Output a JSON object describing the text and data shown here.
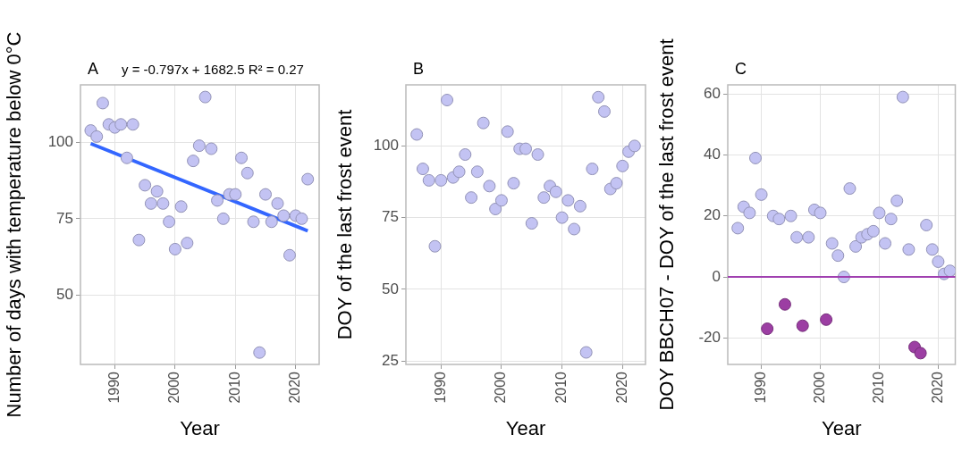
{
  "chart_data": [
    {
      "type": "scatter",
      "title": "A",
      "annotations": [
        "y = -0.797x + 1682.5 R² = 0.27"
      ],
      "xlabel": "Year",
      "ylabel": "Number of days with temperature below 0°C",
      "x": [
        1986,
        1987,
        1988,
        1989,
        1990,
        1991,
        1992,
        1993,
        1994,
        1995,
        1996,
        1997,
        1998,
        1999,
        2000,
        2001,
        2002,
        2003,
        2004,
        2005,
        2006,
        2007,
        2008,
        2009,
        2010,
        2011,
        2012,
        2013,
        2014,
        2015,
        2016,
        2017,
        2018,
        2019,
        2020,
        2021,
        2022
      ],
      "series": [
        {
          "type": "scatter",
          "color": "#c3c3f3",
          "values": [
            104,
            102,
            113,
            106,
            105,
            106,
            95,
            106,
            68,
            86,
            80,
            84,
            80,
            74,
            65,
            79,
            67,
            94,
            99,
            115,
            98,
            81,
            75,
            83,
            83,
            95,
            90,
            74,
            31,
            83,
            74,
            80,
            76,
            63,
            76,
            75,
            88
          ]
        },
        {
          "type": "line",
          "color": "#3366ff",
          "x": [
            1986,
            2022
          ],
          "values": [
            99.7,
            71.0
          ],
          "marker": "none"
        }
      ],
      "xlim": [
        1984.3,
        2023.9
      ],
      "xticks": [
        1990,
        2000,
        2010,
        2020
      ],
      "ylim": [
        27.1,
        119
      ],
      "yticks": [
        50,
        75,
        100
      ],
      "grid": true,
      "legend": false,
      "marker": "circle"
    },
    {
      "type": "scatter",
      "title": "B",
      "xlabel": "Year",
      "ylabel": "DOY of the last frost event",
      "x": [
        1986,
        1987,
        1988,
        1989,
        1990,
        1991,
        1992,
        1993,
        1994,
        1995,
        1996,
        1997,
        1998,
        1999,
        2000,
        2001,
        2002,
        2003,
        2004,
        2005,
        2006,
        2007,
        2008,
        2009,
        2010,
        2011,
        2012,
        2013,
        2014,
        2015,
        2016,
        2017,
        2018,
        2019,
        2020,
        2021,
        2022
      ],
      "series": [
        {
          "type": "scatter",
          "color": "#c3c3f3",
          "values": [
            104,
            92,
            88,
            65,
            88,
            116,
            89,
            91,
            97,
            82,
            91,
            108,
            86,
            78,
            81,
            105,
            87,
            99,
            99,
            73,
            97,
            82,
            86,
            84,
            75,
            81,
            71,
            79,
            28,
            92,
            117,
            112,
            85,
            87,
            93,
            98,
            100
          ]
        }
      ],
      "xlim": [
        1984.2,
        2023.8
      ],
      "xticks": [
        1990,
        2000,
        2010,
        2020
      ],
      "ylim": [
        23.8,
        121.3
      ],
      "yticks": [
        25,
        50,
        75,
        100
      ],
      "grid": true,
      "legend": false,
      "marker": "circle"
    },
    {
      "type": "scatter",
      "title": "C",
      "xlabel": "Year",
      "ylabel": "DOY BBCH07 - DOY of the last frost event",
      "x": [
        1986,
        1987,
        1988,
        1989,
        1990,
        1991,
        1992,
        1993,
        1994,
        1995,
        1996,
        1997,
        1998,
        1999,
        2000,
        2001,
        2002,
        2003,
        2004,
        2005,
        2006,
        2007,
        2008,
        2009,
        2010,
        2011,
        2012,
        2013,
        2014,
        2015,
        2016,
        2017,
        2018,
        2019,
        2020,
        2021,
        2022
      ],
      "series": [
        {
          "type": "scatter",
          "color": "#c3c3f3",
          "values": [
            16,
            23,
            21,
            39,
            27,
            null,
            20,
            19,
            null,
            20,
            13,
            null,
            13,
            22,
            21,
            null,
            11,
            7,
            0,
            29,
            10,
            13,
            14,
            15,
            21,
            11,
            19,
            25,
            59,
            9,
            null,
            null,
            17,
            9,
            5,
            1,
            2
          ]
        },
        {
          "type": "scatter",
          "color": "#9c3ea3",
          "values": [
            null,
            null,
            null,
            null,
            null,
            -17,
            null,
            null,
            -9,
            null,
            null,
            -16,
            null,
            null,
            null,
            -14,
            null,
            null,
            null,
            null,
            null,
            null,
            null,
            null,
            null,
            null,
            null,
            null,
            null,
            null,
            -23,
            -25,
            null,
            null,
            null,
            null,
            null
          ]
        }
      ],
      "ref_lines": [
        {
          "axis": "y",
          "value": 0,
          "color": "#a040b0"
        }
      ],
      "xlim": [
        1984.3,
        2022.9
      ],
      "xticks": [
        1990,
        2000,
        2010,
        2020
      ],
      "ylim": [
        -28.7,
        63
      ],
      "yticks": [
        -20,
        0,
        20,
        40,
        60
      ],
      "grid": true,
      "legend": false,
      "marker": "circle"
    }
  ]
}
